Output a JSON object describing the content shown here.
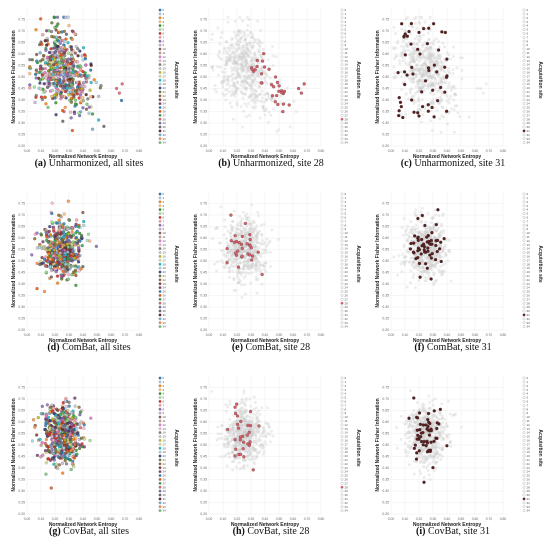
{
  "figure": {
    "panels": [
      {
        "id": "a",
        "letter": "(a)",
        "rest": "Unharmonized, all sites",
        "mode": "all",
        "seed": 11,
        "spread": "wide"
      },
      {
        "id": "b",
        "letter": "(b)",
        "rest": "Unharmonized, site 28",
        "mode": "site28",
        "seed": 12,
        "spread": "wide"
      },
      {
        "id": "c",
        "letter": "(c)",
        "rest": "Unharmonized, site 31",
        "mode": "site31",
        "seed": 13,
        "spread": "wide"
      },
      {
        "id": "d",
        "letter": "(d)",
        "rest": "ComBat, all sites",
        "mode": "all",
        "seed": 21,
        "spread": "tight"
      },
      {
        "id": "e",
        "letter": "(e)",
        "rest": "ComBat, site 28",
        "mode": "site28",
        "seed": 22,
        "spread": "tight"
      },
      {
        "id": "f",
        "letter": "(f)",
        "rest": "ComBat, site 31",
        "mode": "site31",
        "seed": 23,
        "spread": "tight"
      },
      {
        "id": "g",
        "letter": "(g)",
        "rest": "CovBat, all sites",
        "mode": "all",
        "seed": 31,
        "spread": "tight"
      },
      {
        "id": "h",
        "letter": "(h)",
        "rest": "CovBat, site 28",
        "mode": "site28",
        "seed": 32,
        "spread": "tight"
      },
      {
        "id": "i",
        "letter": "(i)",
        "rest": "CovBat, site 31",
        "mode": "site31",
        "seed": 33,
        "spread": "tight"
      }
    ]
  },
  "chart_data": {
    "type": "scatter",
    "xlabel": "Normalized Network Entropy",
    "ylabel": "Normalized Network Fisher Information",
    "legend_title": "Acquisition site",
    "xlim": [
      0,
      0.8
    ],
    "ylim": [
      0.2,
      0.8
    ],
    "xticks": [
      "0.00",
      "0.10",
      "0.20",
      "0.30",
      "0.40",
      "0.50",
      "0.60",
      "0.70",
      "0.80"
    ],
    "yticks": [
      "0.20",
      "0.25",
      "0.30",
      "0.35",
      "0.40",
      "0.45",
      "0.50",
      "0.55",
      "0.60",
      "0.65",
      "0.70",
      "0.75"
    ],
    "sites": [
      "0",
      "1",
      "2",
      "3",
      "4",
      "5",
      "6",
      "7",
      "8",
      "9",
      "10",
      "11",
      "12",
      "13",
      "14",
      "15",
      "16",
      "17",
      "18",
      "19",
      "20",
      "21",
      "22",
      "23",
      "24",
      "25",
      "26",
      "27",
      "28",
      "29",
      "30",
      "31",
      "32",
      "33",
      "34"
    ],
    "site_colors": [
      "#1f77b4",
      "#aec7e8",
      "#ff7f0e",
      "#ffbb78",
      "#2ca02c",
      "#98df8a",
      "#d62728",
      "#ff9896",
      "#9467bd",
      "#c5b0d5",
      "#8c564b",
      "#c49c94",
      "#e377c2",
      "#f7b6d2",
      "#7f7f7f",
      "#c7c7c7",
      "#bcbd22",
      "#dbdb8d",
      "#17becf",
      "#9edae5",
      "#393b79",
      "#637939",
      "#8c6d31",
      "#843c39",
      "#7b4173",
      "#3182bd",
      "#e6550d",
      "#31a354",
      "#d6616b",
      "#756bb1",
      "#636363",
      "#5a1f1f",
      "#6baed6",
      "#fd8d3c",
      "#74c476"
    ],
    "site28_color": "#d6616b",
    "site31_color": "#5a1f1f",
    "background_color": "#cccccc",
    "clouds": {
      "wide": {
        "x_mean": 0.26,
        "x_sd": 0.09,
        "y_mean": 0.55,
        "y_sd": 0.085
      },
      "tight": {
        "x_mean": 0.25,
        "x_sd": 0.07,
        "y_mean": 0.55,
        "y_sd": 0.065
      }
    },
    "outliers": [
      {
        "x": 0.64,
        "y": 0.45
      },
      {
        "x": 0.66,
        "y": 0.43
      },
      {
        "x": 0.68,
        "y": 0.47
      }
    ]
  }
}
